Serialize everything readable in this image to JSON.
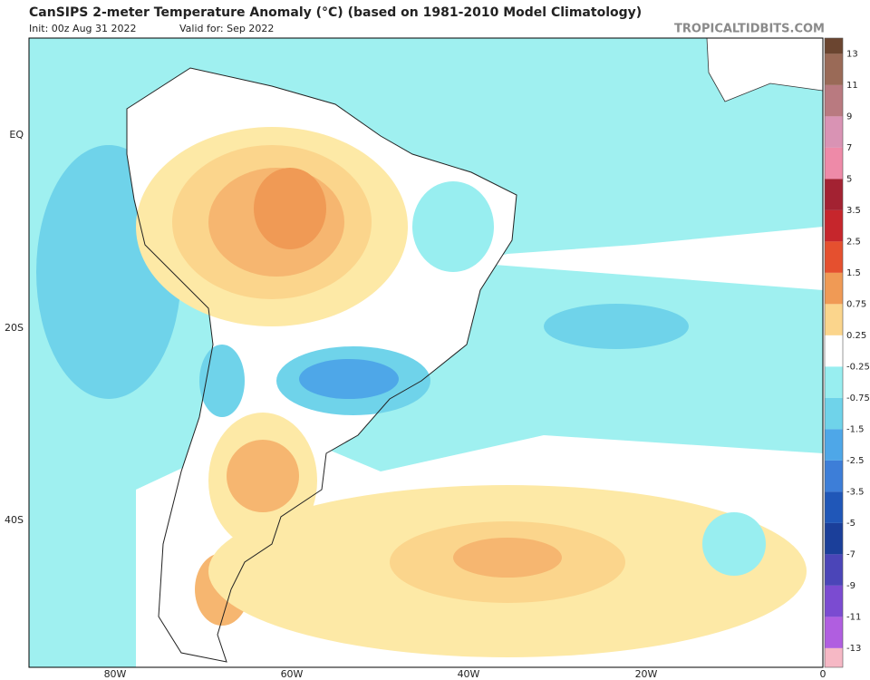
{
  "header": {
    "title": "CanSIPS 2-meter Temperature Anomaly (°C) (based on 1981-2010 Model Climatology)",
    "init": "Init: 00z Aug 31 2022",
    "valid": "Valid for: Sep 2022",
    "watermark": "TROPICALTIDBITS.COM"
  },
  "map": {
    "lat_labels": [
      "EQ",
      "20S",
      "40S"
    ],
    "lon_labels": [
      "80W",
      "60W",
      "40W",
      "20W",
      "0"
    ]
  },
  "colorbar": {
    "labels": [
      "13",
      "11",
      "9",
      "7",
      "5",
      "3.5",
      "2.5",
      "1.5",
      "0.75",
      "0.25",
      "-0.25",
      "-0.75",
      "-1.5",
      "-2.5",
      "-3.5",
      "-5",
      "-7",
      "-9",
      "-11",
      "-13"
    ],
    "colors": [
      "#6b4530",
      "#9a6a57",
      "#b97a80",
      "#d993b4",
      "#ee8aa8",
      "#a32232",
      "#c6262c",
      "#e5502f",
      "#f09a55",
      "#fbd58c",
      "#ffffff",
      "#98eef0",
      "#6fd3ea",
      "#4ea7e8",
      "#3d7ed8",
      "#2057b8",
      "#1b3f9a",
      "#4b45b8",
      "#7b4bd1",
      "#b05ee0",
      "#f6b8c5"
    ]
  }
}
